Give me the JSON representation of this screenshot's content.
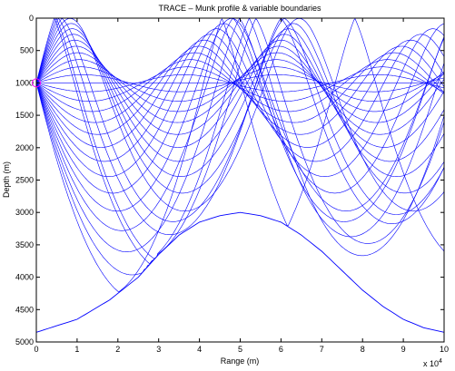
{
  "chart_data": {
    "type": "line",
    "title": "TRACE – Munk profile & variable boundaries",
    "xlabel": "Range (m)",
    "ylabel": "Depth (m)",
    "x_exponent_label": "x 10",
    "x_exponent_power": "4",
    "xlim": [
      0,
      100000
    ],
    "ylim": [
      0,
      5000
    ],
    "y_reversed": true,
    "grid": false,
    "x_ticks": [
      0,
      10000,
      20000,
      30000,
      40000,
      50000,
      60000,
      70000,
      80000,
      90000,
      100000
    ],
    "x_tick_labels": [
      "0",
      "1",
      "2",
      "3",
      "4",
      "5",
      "6",
      "7",
      "8",
      "9",
      "10"
    ],
    "y_ticks": [
      0,
      500,
      1000,
      1500,
      2000,
      2500,
      3000,
      3500,
      4000,
      4500,
      5000
    ],
    "y_tick_labels": [
      "0",
      "500",
      "1000",
      "1500",
      "2000",
      "2500",
      "3000",
      "3500",
      "4000",
      "4500",
      "5000"
    ],
    "ray_color": "#0000ff",
    "source_marker_color": "#ff00ff",
    "source": {
      "x": 0,
      "y": 1000
    },
    "bottom_boundary": {
      "x": [
        0,
        10000,
        18000,
        25000,
        30000,
        35000,
        40000,
        45000,
        50000,
        55000,
        60000,
        65000,
        70000,
        75000,
        80000,
        85000,
        90000,
        95000,
        100000
      ],
      "y": [
        4850,
        4650,
        4350,
        4000,
        3650,
        3350,
        3150,
        3050,
        3000,
        3050,
        3150,
        3350,
        3600,
        3900,
        4200,
        4450,
        4650,
        4780,
        4850
      ]
    },
    "surface_boundary": {
      "y": 0
    },
    "ray_fan": {
      "launch_angles_deg": [
        -14,
        -13,
        -12,
        -11,
        -10,
        -9,
        -8,
        -7,
        -6,
        -5,
        -4,
        -3,
        -2,
        -1,
        0,
        1,
        2,
        3,
        4,
        5,
        6,
        7,
        8,
        9,
        10,
        11,
        12,
        13,
        14
      ],
      "sound_channel_axis_depth": 1000
    }
  }
}
